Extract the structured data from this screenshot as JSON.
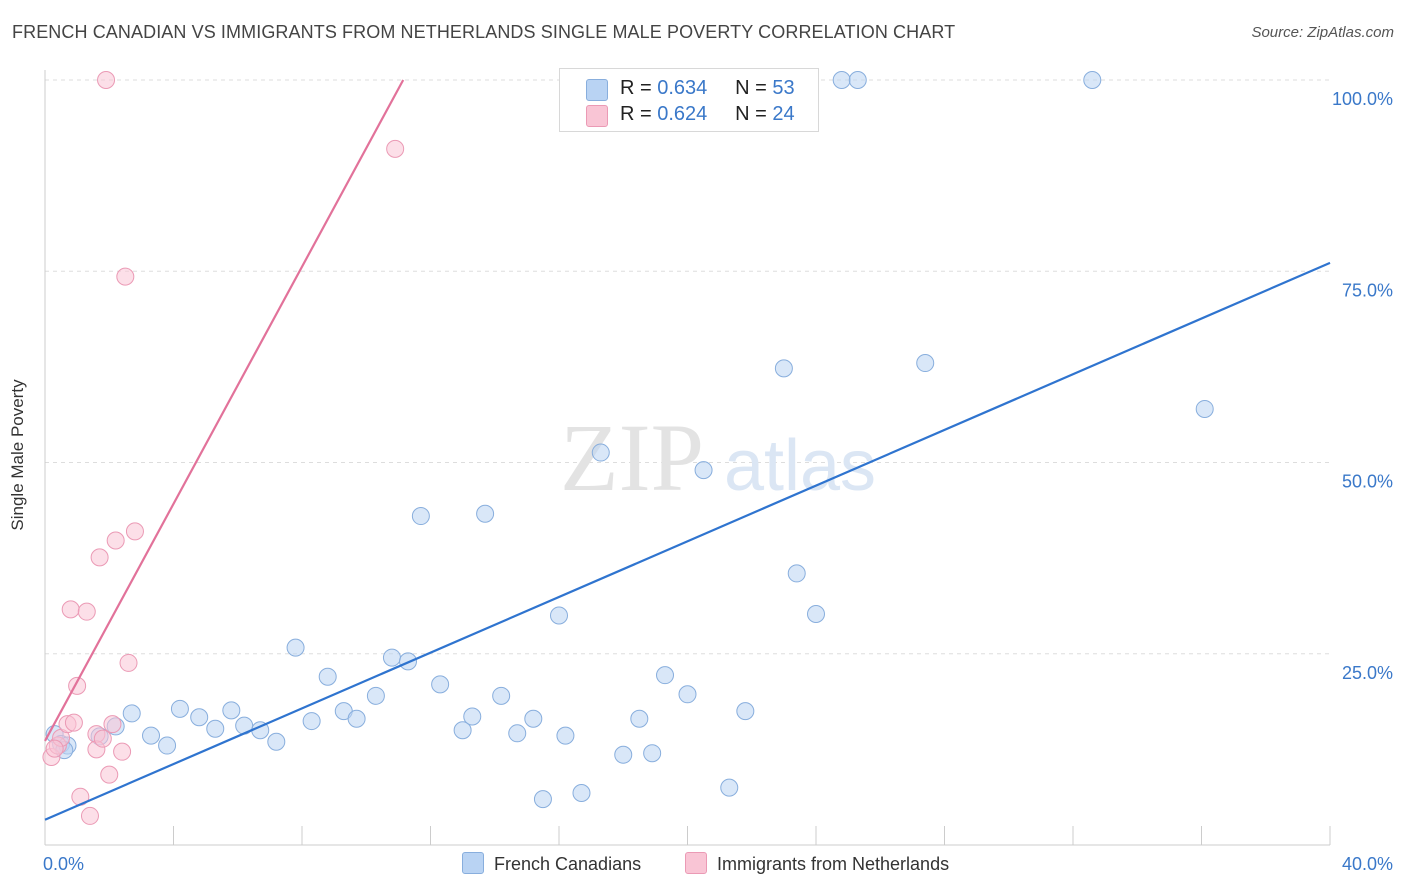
{
  "title": "FRENCH CANADIAN VS IMMIGRANTS FROM NETHERLANDS SINGLE MALE POVERTY CORRELATION CHART",
  "source": "Source: ZipAtlas.com",
  "watermark": {
    "zip": "ZIP",
    "atlas": "atlas"
  },
  "legend_top": {
    "rows": [
      {
        "r_label": "R = ",
        "r_value": "0.634",
        "n_label": "N = ",
        "n_value": "53"
      },
      {
        "r_label": "R = ",
        "r_value": "0.624",
        "n_label": "N = ",
        "n_value": "24"
      }
    ]
  },
  "colors": {
    "blue_fill": "#b9d3f3",
    "blue_stroke": "#88aedd",
    "blue_line": "#2f74cf",
    "pink_fill": "#f9c5d5",
    "pink_stroke": "#eb9ab5",
    "pink_line": "#e2729a",
    "tick_label": "#3a78c9",
    "grid": "#dddddd"
  },
  "chart_data": {
    "type": "scatter",
    "title": "FRENCH CANADIAN VS IMMIGRANTS FROM NETHERLANDS SINGLE MALE POVERTY CORRELATION CHART",
    "xlabel": "",
    "ylabel": "Single Male Poverty",
    "xlim": [
      0,
      40
    ],
    "ylim": [
      0,
      102
    ],
    "x_tick_labels": [
      {
        "value": 0,
        "label": "0.0%"
      },
      {
        "value": 40,
        "label": "40.0%"
      }
    ],
    "y_tick_labels": [
      {
        "value": 25,
        "label": "25.0%"
      },
      {
        "value": 50,
        "label": "50.0%"
      },
      {
        "value": 75,
        "label": "75.0%"
      },
      {
        "value": 100,
        "label": "100.0%"
      }
    ],
    "grid": true,
    "series": [
      {
        "name": "French Canadians",
        "r": 0.634,
        "n": 53,
        "trend": {
          "x1": 0,
          "y1": 3.3,
          "x2": 40,
          "y2": 76.1
        },
        "points": [
          [
            0.3,
            14.5
          ],
          [
            0.5,
            13.2
          ],
          [
            0.7,
            13.0
          ],
          [
            1.7,
            14.2
          ],
          [
            2.2,
            15.5
          ],
          [
            2.7,
            17.2
          ],
          [
            3.3,
            14.3
          ],
          [
            3.8,
            13.0
          ],
          [
            4.2,
            17.8
          ],
          [
            4.8,
            16.7
          ],
          [
            5.3,
            15.2
          ],
          [
            5.8,
            17.6
          ],
          [
            6.2,
            15.6
          ],
          [
            6.7,
            15.0
          ],
          [
            7.2,
            13.5
          ],
          [
            7.8,
            25.8
          ],
          [
            8.3,
            16.2
          ],
          [
            8.8,
            22.0
          ],
          [
            9.3,
            17.5
          ],
          [
            9.7,
            16.5
          ],
          [
            10.3,
            19.5
          ],
          [
            10.8,
            24.5
          ],
          [
            11.3,
            24.0
          ],
          [
            11.7,
            43.0
          ],
          [
            12.3,
            21.0
          ],
          [
            13.0,
            15.0
          ],
          [
            13.3,
            16.8
          ],
          [
            13.7,
            43.3
          ],
          [
            14.2,
            19.5
          ],
          [
            14.7,
            14.6
          ],
          [
            15.2,
            16.5
          ],
          [
            15.5,
            6.0
          ],
          [
            16.0,
            30.0
          ],
          [
            16.2,
            14.3
          ],
          [
            16.7,
            6.8
          ],
          [
            17.3,
            51.3
          ],
          [
            18.0,
            11.8
          ],
          [
            18.5,
            16.5
          ],
          [
            18.9,
            12.0
          ],
          [
            19.3,
            22.2
          ],
          [
            20.0,
            19.7
          ],
          [
            20.5,
            49.0
          ],
          [
            21.3,
            7.5
          ],
          [
            21.8,
            17.5
          ],
          [
            23.0,
            62.3
          ],
          [
            23.4,
            35.5
          ],
          [
            24.0,
            30.2
          ],
          [
            24.8,
            100
          ],
          [
            25.3,
            100
          ],
          [
            27.4,
            63.0
          ],
          [
            32.6,
            100
          ],
          [
            36.1,
            57.0
          ],
          [
            0.6,
            12.4
          ]
        ]
      },
      {
        "name": "Immigrants from Netherlands",
        "r": 0.624,
        "n": 24,
        "trend": {
          "x1": 0,
          "y1": 13.6,
          "x2": 11.15,
          "y2": 100
        },
        "points": [
          [
            0.2,
            11.5
          ],
          [
            0.4,
            13.0
          ],
          [
            0.5,
            14.0
          ],
          [
            0.7,
            15.8
          ],
          [
            0.8,
            30.8
          ],
          [
            0.9,
            16.0
          ],
          [
            1.0,
            20.8
          ],
          [
            1.1,
            6.3
          ],
          [
            1.3,
            30.5
          ],
          [
            1.4,
            3.8
          ],
          [
            1.6,
            14.5
          ],
          [
            1.6,
            12.5
          ],
          [
            1.7,
            37.6
          ],
          [
            1.8,
            13.9
          ],
          [
            2.0,
            9.2
          ],
          [
            2.1,
            15.8
          ],
          [
            2.2,
            39.8
          ],
          [
            2.4,
            12.2
          ],
          [
            2.5,
            74.3
          ],
          [
            2.6,
            23.8
          ],
          [
            2.8,
            41.0
          ],
          [
            1.9,
            100
          ],
          [
            10.9,
            91.0
          ],
          [
            0.3,
            12.6
          ]
        ]
      }
    ]
  },
  "bottom_legend": {
    "items": [
      {
        "label": "French Canadians"
      },
      {
        "label": "Immigrants from Netherlands"
      }
    ]
  }
}
